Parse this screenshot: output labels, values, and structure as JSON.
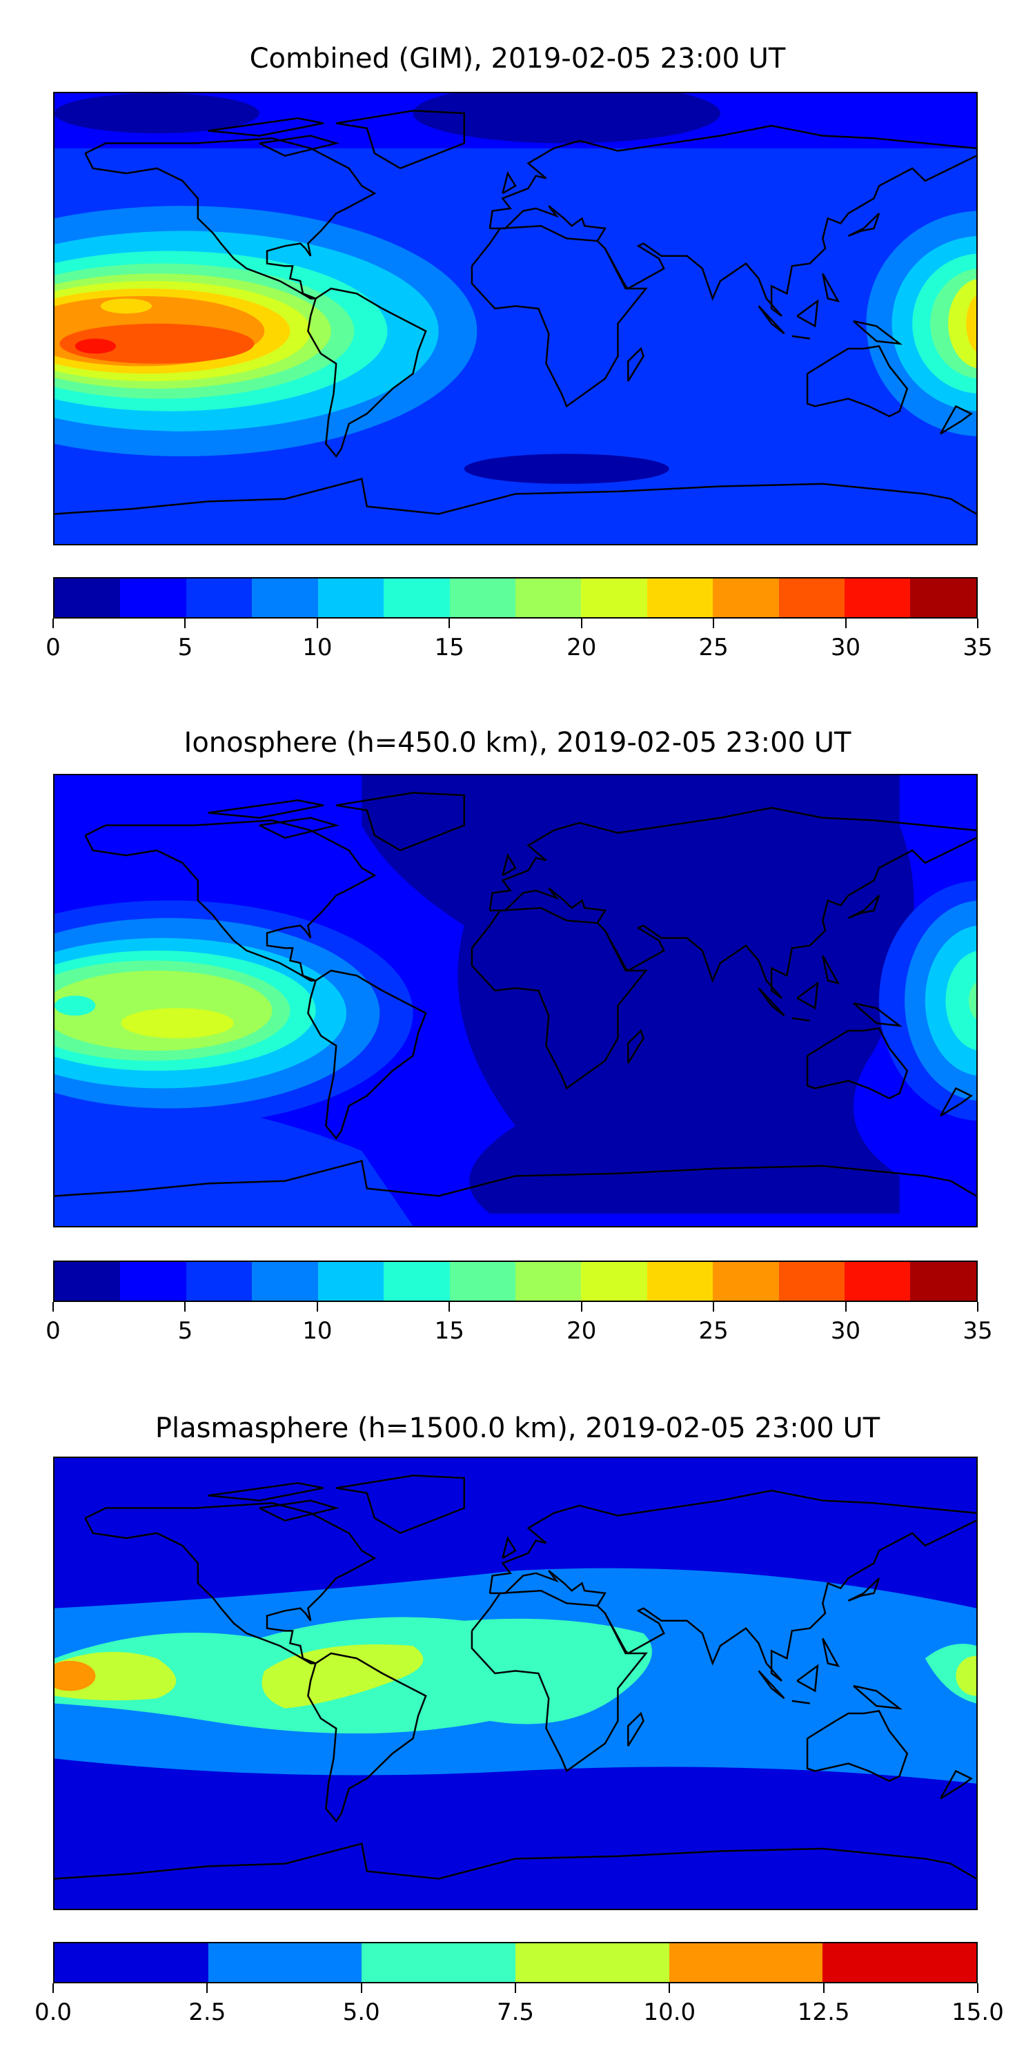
{
  "chart_data": [
    {
      "type": "heatmap",
      "title": "Combined (GIM), 2019-02-05 23:00 UT",
      "levels": [
        0,
        2.5,
        5,
        7.5,
        10,
        12.5,
        15,
        17.5,
        20,
        22.5,
        25,
        27.5,
        30,
        32.5,
        35
      ],
      "colors": [
        "#0000a8",
        "#0000ff",
        "#0033ff",
        "#0080ff",
        "#00c8ff",
        "#22ffd4",
        "#5eff9a",
        "#9fff56",
        "#d4ff22",
        "#ffd700",
        "#ff9500",
        "#ff5500",
        "#ff1100",
        "#a80000"
      ],
      "tick_labels": [
        "0",
        "5",
        "10",
        "15",
        "20",
        "25",
        "30",
        "35"
      ],
      "tick_values": [
        0,
        5,
        10,
        15,
        20,
        25,
        30,
        35
      ],
      "range": [
        0,
        35
      ],
      "peak_region": "central Pacific (max ~30)"
    },
    {
      "type": "heatmap",
      "title": "Ionosphere  (h=450.0 km), 2019-02-05 23:00 UT",
      "levels": [
        0,
        2.5,
        5,
        7.5,
        10,
        12.5,
        15,
        17.5,
        20,
        22.5,
        25,
        27.5,
        30,
        32.5,
        35
      ],
      "colors": [
        "#0000a8",
        "#0000ff",
        "#0033ff",
        "#0080ff",
        "#00c8ff",
        "#22ffd4",
        "#5eff9a",
        "#9fff56",
        "#d4ff22",
        "#ffd700",
        "#ff9500",
        "#ff5500",
        "#ff1100",
        "#a80000"
      ],
      "tick_labels": [
        "0",
        "5",
        "10",
        "15",
        "20",
        "25",
        "30",
        "35"
      ],
      "tick_values": [
        0,
        5,
        10,
        15,
        20,
        25,
        30,
        35
      ],
      "range": [
        0,
        35
      ],
      "peak_region": "central Pacific (max ~22.5)"
    },
    {
      "type": "heatmap",
      "title": "Plasmasphere (h=1500.0 km), 2019-02-05 23:00 UT",
      "levels": [
        0,
        2.5,
        5,
        7.5,
        10,
        12.5,
        15
      ],
      "colors": [
        "#0000dd",
        "#0080ff",
        "#3affc0",
        "#c2ff33",
        "#ff9500",
        "#de0000"
      ],
      "tick_labels": [
        "0.0",
        "2.5",
        "5.0",
        "7.5",
        "10.0",
        "12.5",
        "15.0"
      ],
      "tick_values": [
        0,
        2.5,
        5,
        7.5,
        10,
        12.5,
        15
      ],
      "range": [
        0,
        15
      ],
      "peak_region": "equatorial band (max ~12.5)"
    }
  ]
}
